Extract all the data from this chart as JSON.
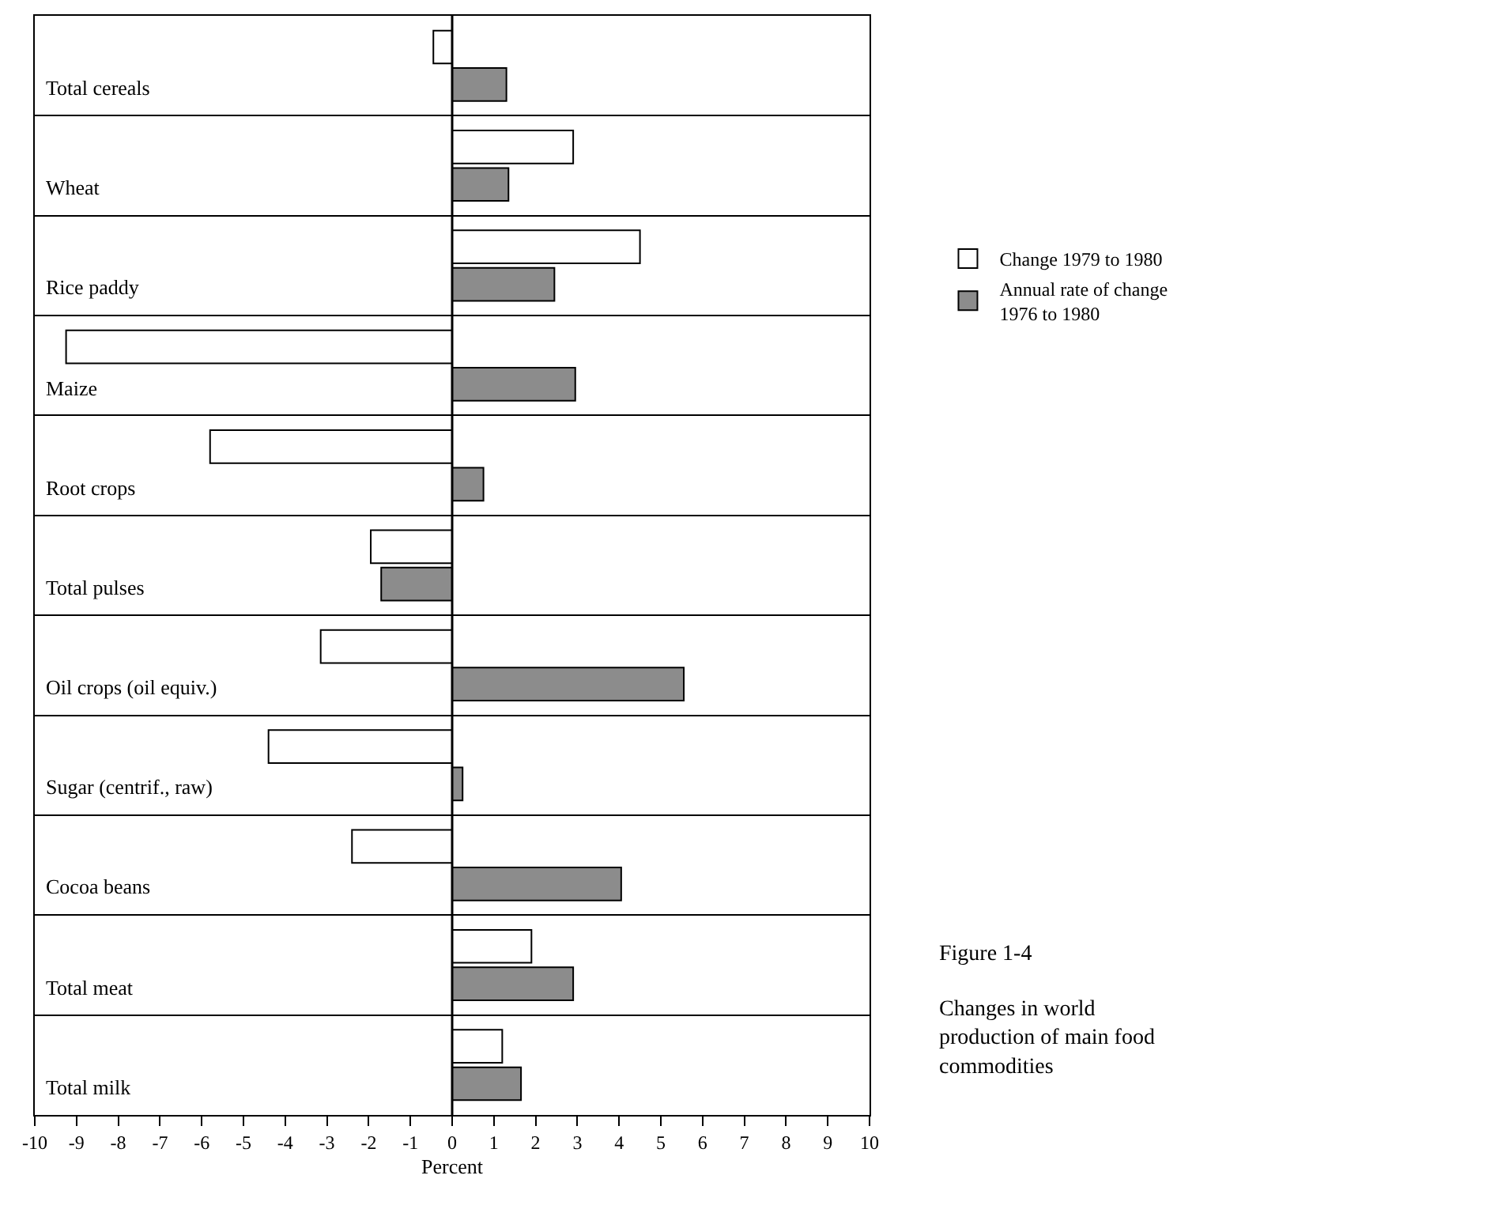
{
  "chart_data": {
    "type": "bar",
    "orientation": "horizontal",
    "xlabel": "Percent",
    "categories": [
      "Total cereals",
      "Wheat",
      "Rice paddy",
      "Maize",
      "Root crops",
      "Total pulses",
      "Oil crops (oil equiv.)",
      "Sugar (centrif., raw)",
      "Cocoa beans",
      "Total meat",
      "Total milk"
    ],
    "series": [
      {
        "name": "Change 1979 to 1980",
        "color": "#ffffff",
        "values": [
          -0.45,
          2.9,
          4.5,
          -9.25,
          -5.8,
          -1.95,
          -3.15,
          -4.4,
          -2.4,
          1.9,
          1.2
        ]
      },
      {
        "name": "Annual rate of change 1976 to 1980",
        "color": "#8c8c8c",
        "values": [
          1.3,
          1.35,
          2.45,
          2.95,
          0.75,
          -1.7,
          5.55,
          0.25,
          4.05,
          2.9,
          1.65
        ]
      }
    ],
    "xlim": [
      -10,
      10
    ],
    "xticks": [
      {
        "value": -10,
        "label": "-10"
      },
      {
        "value": -9,
        "label": "-9"
      },
      {
        "value": -8,
        "label": "-8"
      },
      {
        "value": -7,
        "label": "-7"
      },
      {
        "value": -6,
        "label": "-6"
      },
      {
        "value": -5,
        "label": "-5"
      },
      {
        "value": -4,
        "label": "-4"
      },
      {
        "value": -3,
        "label": "-3"
      },
      {
        "value": -2,
        "label": "-2"
      },
      {
        "value": -1,
        "label": "-1"
      },
      0,
      1,
      2,
      3,
      4,
      5,
      6,
      7,
      8,
      9,
      10
    ],
    "grid": "y",
    "legend": "right",
    "ref_lines": [
      {
        "axis": "x",
        "value": 0,
        "color": "#000000"
      }
    ],
    "annotations": [
      "Figure 1-4",
      "Changes in world production of main food commodities"
    ]
  }
}
